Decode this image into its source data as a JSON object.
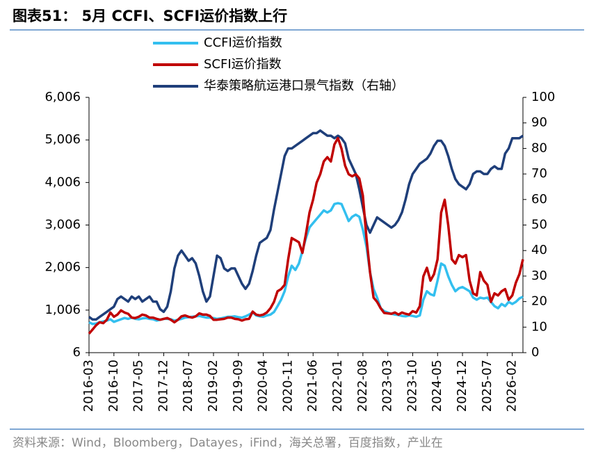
{
  "chart_data": {
    "type": "line",
    "title": "图表51：  5月  CCFI、SCFI运价指数上行",
    "source": "资料来源：Wind，Bloomberg，Datayes，iFind，海关总署，百度指数，产业在",
    "legend": "top",
    "categories": [
      "2016-03",
      null,
      null,
      null,
      null,
      null,
      null,
      "2016-10",
      null,
      null,
      null,
      null,
      null,
      null,
      "2017-05",
      null,
      null,
      null,
      null,
      null,
      null,
      "2017-12",
      null,
      null,
      null,
      null,
      null,
      null,
      "2018-07",
      null,
      null,
      null,
      null,
      null,
      null,
      "2019-02",
      null,
      null,
      null,
      null,
      null,
      null,
      "2019-09",
      null,
      null,
      null,
      null,
      null,
      null,
      "2020-04",
      null,
      null,
      null,
      null,
      null,
      null,
      "2020-11",
      null,
      null,
      null,
      null,
      null,
      null,
      "2021-06",
      null,
      null,
      null,
      null,
      null,
      null,
      "2022-01",
      null,
      null,
      null,
      null,
      null,
      null,
      "2022-08",
      null,
      null,
      null,
      null,
      null,
      null,
      "2023-03",
      null,
      null,
      null,
      null,
      null,
      null,
      "2023-10",
      null,
      null,
      null,
      null,
      null,
      null,
      "2024-05",
      null,
      null,
      null,
      null,
      null,
      null,
      "2024-12",
      null,
      null,
      null,
      null,
      null,
      null,
      "2025-07",
      null,
      null,
      null,
      null,
      null,
      null,
      "2026-02",
      null,
      null,
      null
    ],
    "ylim": [
      6,
      6006
    ],
    "yticks": [
      6,
      {
        "value": 1006,
        "label": "1,006"
      },
      {
        "value": 2006,
        "label": "2,006"
      },
      {
        "value": 3006,
        "label": "3,006"
      },
      {
        "value": 4006,
        "label": "4,006"
      },
      {
        "value": 5006,
        "label": "5,006"
      },
      {
        "value": 6006,
        "label": "6,006"
      }
    ],
    "y2lim": [
      0,
      100
    ],
    "y2ticks": [
      0,
      10,
      20,
      30,
      40,
      50,
      60,
      70,
      80,
      90,
      100
    ],
    "series": [
      {
        "name": "CCFI运价指数",
        "color": "#33bfef",
        "values": [
          720,
          680,
          690,
          720,
          740,
          760,
          790,
          730,
          760,
          790,
          820,
          800,
          830,
          800,
          790,
          810,
          820,
          800,
          790,
          760,
          780,
          800,
          800,
          790,
          760,
          780,
          800,
          830,
          840,
          850,
          860,
          870,
          850,
          830,
          830,
          820,
          800,
          810,
          830,
          850,
          850,
          860,
          840,
          830,
          860,
          900,
          950,
          880,
          860,
          850,
          880,
          900,
          960,
          1100,
          1250,
          1450,
          1800,
          2050,
          1950,
          2100,
          2400,
          2700,
          2950,
          3050,
          3150,
          3250,
          3350,
          3300,
          3350,
          3500,
          3520,
          3500,
          3300,
          3100,
          3200,
          3250,
          3200,
          2900,
          2500,
          1900,
          1500,
          1300,
          1050,
          980,
          950,
          920,
          900,
          890,
          870,
          860,
          880,
          870,
          850,
          880,
          1250,
          1450,
          1380,
          1350,
          1700,
          2100,
          2050,
          1800,
          1600,
          1450,
          1520,
          1550,
          1500,
          1450,
          1300,
          1250,
          1300,
          1280,
          1300,
          1200,
          1100,
          1050,
          1150,
          1100,
          1200,
          1150,
          1200,
          1280,
          1320
        ]
      },
      {
        "name": "SCFI运价指数",
        "color": "#c00000",
        "values": [
          450,
          550,
          650,
          720,
          700,
          780,
          950,
          850,
          900,
          1000,
          950,
          920,
          830,
          820,
          850,
          900,
          880,
          830,
          830,
          800,
          780,
          800,
          820,
          780,
          720,
          780,
          860,
          880,
          850,
          830,
          860,
          930,
          900,
          900,
          870,
          780,
          780,
          790,
          800,
          830,
          830,
          800,
          790,
          760,
          790,
          800,
          970,
          900,
          880,
          900,
          950,
          1050,
          1200,
          1450,
          1500,
          1600,
          2200,
          2700,
          2650,
          2600,
          2350,
          2800,
          3300,
          3600,
          4000,
          4200,
          4500,
          4600,
          4500,
          4900,
          5050,
          4800,
          4400,
          4200,
          4150,
          4200,
          4100,
          3700,
          2700,
          1900,
          1300,
          1200,
          1050,
          940,
          930,
          920,
          950,
          900,
          950,
          920,
          900,
          980,
          950,
          1100,
          1800,
          2000,
          1700,
          1850,
          2200,
          3300,
          3600,
          3000,
          2200,
          2100,
          2300,
          2250,
          2300,
          1700,
          1400,
          1350,
          1900,
          1700,
          1600,
          1200,
          1400,
          1350,
          1450,
          1500,
          1250,
          1350,
          1650,
          1850,
          2200
        ]
      },
      {
        "name": "华泰策略航运港口景气指数（右轴）",
        "color": "#1f3f7a",
        "axis": "y2",
        "values": [
          14,
          13,
          13,
          14,
          15,
          16,
          17,
          18,
          21,
          22,
          21,
          20,
          22,
          21,
          22,
          20,
          21,
          22,
          20,
          20,
          17,
          16,
          18,
          24,
          33,
          38,
          40,
          38,
          36,
          37,
          35,
          30,
          24,
          20,
          22,
          30,
          38,
          37,
          33,
          32,
          33,
          33,
          30,
          27,
          25,
          27,
          32,
          38,
          43,
          44,
          45,
          48,
          56,
          63,
          70,
          77,
          80,
          80,
          81,
          82,
          83,
          84,
          85,
          86,
          86,
          87,
          86,
          85,
          85,
          84,
          85,
          84,
          82,
          76,
          73,
          70,
          64,
          57,
          50,
          47,
          50,
          53,
          52,
          51,
          50,
          49,
          50,
          52,
          55,
          60,
          66,
          70,
          72,
          74,
          75,
          76,
          78,
          81,
          83,
          83,
          81,
          77,
          72,
          68,
          66,
          65,
          64,
          66,
          70,
          71,
          71,
          70,
          70,
          72,
          73,
          72,
          72,
          78,
          80,
          84,
          84,
          84,
          85
        ]
      }
    ]
  }
}
